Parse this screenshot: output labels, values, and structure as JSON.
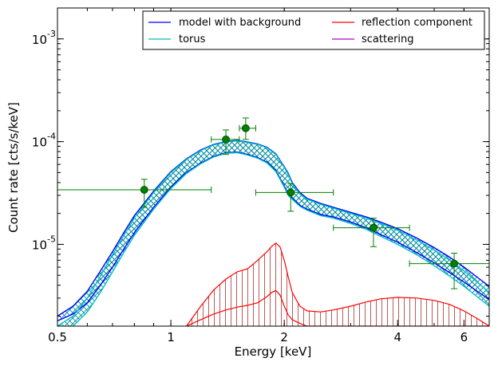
{
  "chart_data": {
    "type": "line",
    "title": "",
    "xlabel": "Energy [keV]",
    "ylabel": "Count rate [cts/s/keV]",
    "x_scale": "log",
    "y_scale": "log",
    "xlim": [
      0.5,
      7.0
    ],
    "ylim": [
      1.6e-06,
      0.002
    ],
    "grid": false,
    "legend_position": "top-right",
    "x_ticks": [
      {
        "value": 0.5,
        "label": "0.5"
      },
      {
        "value": 1,
        "label": "1"
      },
      {
        "value": 2,
        "label": "2"
      },
      {
        "value": 4,
        "label": "4"
      },
      {
        "value": 6,
        "label": "6"
      }
    ],
    "y_ticks": [
      {
        "value": 1e-05,
        "label": "10",
        "exp": "-5"
      },
      {
        "value": 0.0001,
        "label": "10",
        "exp": "-4"
      },
      {
        "value": 0.001,
        "label": "10",
        "exp": "-3"
      }
    ],
    "series": [
      {
        "name": "model with background",
        "color": "#0000ff",
        "x": [
          0.5,
          0.55,
          0.6,
          0.65,
          0.7,
          0.75,
          0.8,
          0.9,
          1.0,
          1.1,
          1.2,
          1.3,
          1.4,
          1.5,
          1.6,
          1.7,
          1.8,
          1.9,
          2.0,
          2.05,
          2.1,
          2.2,
          2.3,
          2.5,
          2.7,
          3.0,
          3.3,
          3.6,
          4.0,
          4.5,
          5.0,
          5.5,
          6.0,
          6.5,
          7.0
        ],
        "y_low": [
          1.8e-06,
          2.1e-06,
          2.7e-06,
          4e-06,
          6e-06,
          9e-06,
          1.3e-05,
          2.3e-05,
          3.6e-05,
          5e-05,
          6.2e-05,
          7.2e-05,
          7.8e-05,
          7.9e-05,
          7.5e-05,
          7e-05,
          6.3e-05,
          5.2e-05,
          3.7e-05,
          3.1e-05,
          2.8e-05,
          2.4e-05,
          2.2e-05,
          1.95e-05,
          1.85e-05,
          1.65e-05,
          1.45e-05,
          1.25e-05,
          1.05e-05,
          8.3e-06,
          6.6e-06,
          5.3e-06,
          4.3e-06,
          3.5e-06,
          2.9e-06
        ],
        "y_high": [
          2e-06,
          2.5e-06,
          3.5e-06,
          5.5e-06,
          8.5e-06,
          1.3e-05,
          1.9e-05,
          3.3e-05,
          5.1e-05,
          6.8e-05,
          8.3e-05,
          9.4e-05,
          0.0001,
          0.000103,
          9.9e-05,
          9.5e-05,
          8.8e-05,
          7.6e-05,
          5.7e-05,
          4.9e-05,
          4e-05,
          3.2e-05,
          2.8e-05,
          2.5e-05,
          2.3e-05,
          2.05e-05,
          1.85e-05,
          1.65e-05,
          1.42e-05,
          1.15e-05,
          9.3e-06,
          7.5e-06,
          6e-06,
          4.8e-06,
          3.9e-06
        ]
      },
      {
        "name": "torus",
        "color": "#00bfbf",
        "x": [
          0.5,
          0.55,
          0.6,
          0.65,
          0.7,
          0.75,
          0.8,
          0.9,
          1.0,
          1.1,
          1.2,
          1.3,
          1.4,
          1.5,
          1.6,
          1.7,
          1.8,
          1.9,
          2.0,
          2.05,
          2.1,
          2.2,
          2.3,
          2.5,
          2.7,
          3.0,
          3.3,
          3.6,
          4.0,
          4.5,
          5.0,
          5.5,
          6.0,
          6.5,
          7.0
        ],
        "y_low": [
          1.3e-06,
          1.6e-06,
          2.2e-06,
          3.4e-06,
          5.4e-06,
          8.3e-06,
          1.22e-05,
          2.2e-05,
          3.5e-05,
          4.9e-05,
          6.1e-05,
          7.1e-05,
          7.7e-05,
          7.8e-05,
          7.4e-05,
          6.9e-05,
          6.2e-05,
          5.1e-05,
          3.6e-05,
          3e-05,
          2.75e-05,
          2.35e-05,
          2.15e-05,
          1.9e-05,
          1.8e-05,
          1.6e-05,
          1.4e-05,
          1.2e-05,
          1e-05,
          7.9e-06,
          6.2e-06,
          4.9e-06,
          3.9e-06,
          3.1e-06,
          2.5e-06
        ],
        "y_high": [
          1.6e-06,
          2e-06,
          3e-06,
          4.9e-06,
          7.9e-06,
          1.22e-05,
          1.8e-05,
          3.2e-05,
          5e-05,
          6.7e-05,
          8.2e-05,
          9.3e-05,
          9.9e-05,
          0.000102,
          9.8e-05,
          9.4e-05,
          8.7e-05,
          7.5e-05,
          5.6e-05,
          4.8e-05,
          3.9e-05,
          3.1e-05,
          2.75e-05,
          2.45e-05,
          2.25e-05,
          2e-05,
          1.8e-05,
          1.6e-05,
          1.37e-05,
          1.1e-05,
          8.8e-06,
          7e-06,
          5.5e-06,
          4.3e-06,
          3.4e-06
        ]
      },
      {
        "name": "reflection component",
        "color": "#ff0000",
        "x": [
          1.1,
          1.2,
          1.3,
          1.4,
          1.5,
          1.6,
          1.7,
          1.8,
          1.85,
          1.9,
          1.95,
          2.0,
          2.05,
          2.1,
          2.2,
          2.3,
          2.5,
          2.7,
          3.0,
          3.3,
          3.6,
          4.0,
          4.5,
          5.0,
          5.5,
          6.0,
          6.5,
          7.0
        ],
        "y_low": [
          1.6e-06,
          1.85e-06,
          2.1e-06,
          2.3e-06,
          2.45e-06,
          2.55e-06,
          2.7e-06,
          3.1e-06,
          3.4e-06,
          3.55e-06,
          3.2e-06,
          2.5e-06,
          2.05e-06,
          1.85e-06,
          1.7e-06,
          1.6e-06,
          1.6e-06,
          1.6e-06,
          1.6e-06,
          1.6e-06,
          1.6e-06,
          1.6e-06,
          1.6e-06,
          1.6e-06,
          1.6e-06,
          1.6e-06,
          1.6e-06,
          1.6e-06
        ],
        "y_high": [
          1.6e-06,
          2.5e-06,
          3.6e-06,
          4.6e-06,
          5.4e-06,
          5.8e-06,
          7e-06,
          8.5e-06,
          9.5e-06,
          1.03e-05,
          9.4e-06,
          7e-06,
          4.8e-06,
          3.4e-06,
          2.5e-06,
          2.25e-06,
          2.2e-06,
          2.3e-06,
          2.5e-06,
          2.75e-06,
          2.95e-06,
          3.05e-06,
          3e-06,
          2.85e-06,
          2.6e-06,
          2.25e-06,
          1.9e-06,
          1.6e-06
        ]
      },
      {
        "name": "scattering",
        "color": "#bf00bf",
        "x": [],
        "y_low": [],
        "y_high": []
      }
    ],
    "data_points": {
      "name": "data",
      "color": "#008000",
      "points": [
        {
          "x": 0.85,
          "xerr": [
            0.5,
            1.28
          ],
          "y": 3.4e-05,
          "yerr": [
            2.3e-05,
            4.3e-05
          ]
        },
        {
          "x": 1.4,
          "xerr": [
            1.28,
            1.52
          ],
          "y": 0.000105,
          "yerr": [
            7.5e-05,
            0.00013
          ]
        },
        {
          "x": 1.58,
          "xerr": [
            1.52,
            1.68
          ],
          "y": 0.000135,
          "yerr": [
            0.000105,
            0.00017
          ]
        },
        {
          "x": 2.08,
          "xerr": [
            1.68,
            2.7
          ],
          "y": 3.2e-05,
          "yerr": [
            2.1e-05,
            3.9e-05
          ]
        },
        {
          "x": 3.45,
          "xerr": [
            2.7,
            4.3
          ],
          "y": 1.45e-05,
          "yerr": [
            9.5e-06,
            1.8e-05
          ]
        },
        {
          "x": 5.65,
          "xerr": [
            4.3,
            7.0
          ],
          "y": 6.5e-06,
          "yerr": [
            3.7e-06,
            8.2e-06
          ]
        }
      ]
    }
  }
}
